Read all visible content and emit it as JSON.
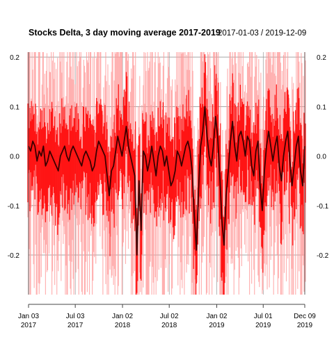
{
  "chart_data": {
    "type": "line",
    "title": "Stocks Delta, 3 day moving average 2017-2019",
    "date_range_label": "2017-01-03 / 2019-12-09",
    "x_start": "2017-01-03",
    "x_end": "2019-12-09",
    "ylim": [
      -0.28,
      0.21
    ],
    "y_ticks": [
      0.2,
      0.1,
      0.0,
      -0.1,
      -0.2
    ],
    "y_tick_labels": [
      "0.2",
      "0.1",
      "0.0",
      "-0.1",
      "-0.2"
    ],
    "x_ticks": [
      {
        "date": "2017-01-03",
        "label_top": "Jan 03",
        "label_bottom": "2017"
      },
      {
        "date": "2017-07-03",
        "label_top": "Jul 03",
        "label_bottom": "2017"
      },
      {
        "date": "2018-01-02",
        "label_top": "Jan 02",
        "label_bottom": "2018"
      },
      {
        "date": "2018-07-02",
        "label_top": "Jul 02",
        "label_bottom": "2018"
      },
      {
        "date": "2019-01-02",
        "label_top": "Jan 02",
        "label_bottom": "2019"
      },
      {
        "date": "2019-07-01",
        "label_top": "Jul 01",
        "label_bottom": "2019"
      },
      {
        "date": "2019-12-09",
        "label_top": "Dec 09",
        "label_bottom": "2019"
      }
    ],
    "grid": true,
    "colors": {
      "mean_line": "#3a0000",
      "inner_band": "#ff0000",
      "outer_band": "#ff9a9a",
      "grid": "#888888",
      "axis": "#444444"
    },
    "series": [
      {
        "values": [
          0.02,
          0.01,
          0.03,
          0.02,
          -0.01,
          0.01,
          0.0,
          0.02,
          -0.02,
          -0.01,
          0.01,
          0.0,
          -0.01,
          -0.02,
          -0.03,
          0.0,
          0.01,
          0.02,
          0.0,
          -0.01,
          0.01,
          0.02,
          0.01,
          0.0,
          -0.01,
          -0.02,
          0.0,
          0.01,
          0.0,
          -0.01,
          -0.03,
          -0.02,
          0.01,
          0.03,
          0.02,
          0.01,
          0.0,
          -0.04,
          -0.08,
          -0.03,
          -0.02,
          0.01,
          0.04,
          0.02,
          0.0,
          0.03,
          0.06,
          0.02,
          0.0,
          -0.02,
          -0.04,
          -0.2,
          -0.05,
          -0.15,
          0.01,
          0.0,
          -0.03,
          -0.01,
          0.02,
          -0.01,
          -0.04,
          0.0,
          0.02,
          0.01,
          -0.02,
          0.0,
          -0.03,
          -0.06,
          -0.05,
          -0.03,
          0.01,
          0.0,
          -0.02,
          0.0,
          0.02,
          0.03,
          0.01,
          -0.03,
          -0.12,
          -0.19,
          -0.07,
          0.02,
          0.05,
          0.1,
          0.04,
          0.0,
          -0.02,
          0.02,
          0.08,
          0.04,
          -0.04,
          -0.13,
          -0.18,
          -0.08,
          -0.03,
          0.03,
          0.07,
          0.02,
          -0.01,
          0.04,
          0.05,
          0.03,
          0.0,
          0.04,
          0.03,
          -0.02,
          -0.04,
          0.01,
          0.03,
          -0.06,
          -0.11,
          -0.03,
          0.02,
          0.05,
          0.02,
          -0.01,
          0.02,
          0.04,
          -0.02,
          -0.05,
          0.0,
          0.03,
          0.05,
          -0.01,
          -0.06,
          -0.02,
          0.02,
          0.04,
          -0.03,
          -0.06,
          0.02
        ]
      }
    ]
  }
}
